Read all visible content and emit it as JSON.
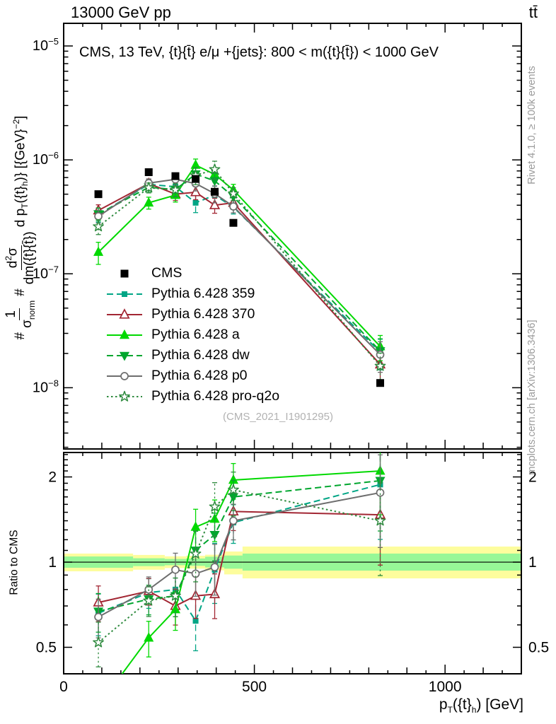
{
  "header": {
    "top_left": "13000 GeV pp",
    "top_right": "tt̄"
  },
  "sidebar": {
    "rivet_note": "Rivet 4.1.0, ≥ 100k events",
    "mcplots_note": "mcplots.cern.ch [arXiv:1306.3436]"
  },
  "chart_data": {
    "type": "line",
    "title": "CMS, 13 TeV, {t}{t̄} e/μ +{jets}: 800 < m({t}{t̄}) < 1000 GeV",
    "watermark": "(CMS_2021_I1901295)",
    "ratio_ylabel": "Ratio to CMS",
    "xlabel_parts": {
      "p": "p",
      "t_sub": "T",
      "mid": "({t}",
      "h_sub": "h",
      "tail": ") [GeV]"
    },
    "ylabel_parts": {
      "hash1": "#",
      "num1": "1",
      "sigma": "σ",
      "norm_sub": "norm",
      "hash2": "#",
      "d": "d",
      "two_sup": "2",
      "sigma2": "σ",
      "dm": "dm({t}{t̄})",
      "tail1": " d p",
      "T_sub": "T",
      "tail2": "({t}",
      "h_sub": "h",
      "tail3": ")} [{GeV}",
      "exp_sup": "−2",
      "tail4": "]"
    },
    "xlim": [
      0,
      1200
    ],
    "ylim_main": [
      2.9e-09,
      1.58e-05
    ],
    "ylim_ratio": [
      0.403,
      2.44
    ],
    "grid": false,
    "legend_position": "middle-left",
    "x_ticks": [
      0,
      500,
      1000
    ],
    "y_ticks_main_exp": [
      -5,
      -6,
      -7,
      -8
    ],
    "y_ticks_ratio": [
      2,
      1,
      0.5
    ],
    "x": [
      91,
      223,
      293,
      346,
      396,
      445,
      830
    ],
    "bin_label": "p_T({t}_h) bin centers in GeV",
    "cms": {
      "name": "CMS",
      "color": "#000000",
      "values": [
        5e-07,
        7.8e-07,
        7.2e-07,
        6.8e-07,
        5.25e-07,
        2.8e-07,
        1.1e-08
      ]
    },
    "series": [
      {
        "name": "Pythia 6.428 359",
        "color": "#00a585",
        "style": "dashed",
        "marker": "square-filled",
        "values": [
          3.3e-07,
          6.1e-07,
          5.8e-07,
          4.2e-07,
          4.9e-07,
          3.85e-07,
          2.05e-08
        ],
        "ratio": [
          0.66,
          0.78,
          0.8,
          0.62,
          0.94,
          1.38,
          1.88
        ],
        "err_rel": [
          0.14,
          0.1,
          0.14,
          0.18,
          0.2,
          0.13,
          0.3
        ]
      },
      {
        "name": "Pythia 6.428 370",
        "color": "#a22633",
        "style": "solid",
        "marker": "triangle-open",
        "values": [
          3.6e-07,
          6.2e-07,
          5e-07,
          5.2e-07,
          4e-07,
          4.2e-07,
          1.6e-08
        ],
        "ratio": [
          0.72,
          0.79,
          0.7,
          0.76,
          0.77,
          1.51,
          1.47
        ],
        "err_rel": [
          0.12,
          0.09,
          0.12,
          0.14,
          0.15,
          0.12,
          0.28
        ]
      },
      {
        "name": "Pythia 6.428 a",
        "color": "#00d900",
        "style": "solid",
        "marker": "triangle-filled",
        "values": [
          1.55e-07,
          4.2e-07,
          4.9e-07,
          9e-07,
          7.45e-07,
          5.45e-07,
          2.3e-08
        ],
        "ratio": [
          0.31,
          0.54,
          0.68,
          1.33,
          1.42,
          1.95,
          2.1
        ],
        "err_rel": [
          0.22,
          0.12,
          0.13,
          0.13,
          0.14,
          0.12,
          0.25
        ]
      },
      {
        "name": "Pythia 6.428 dw",
        "color": "#00a62e",
        "style": "dashed",
        "marker": "triangle-down-filled",
        "values": [
          3.35e-07,
          5.75e-07,
          5.5e-07,
          7.5e-07,
          6.55e-07,
          4.75e-07,
          2.1e-08
        ],
        "ratio": [
          0.67,
          0.74,
          0.76,
          1.1,
          1.25,
          1.7,
          1.94
        ],
        "err_rel": [
          0.13,
          0.1,
          0.13,
          0.14,
          0.16,
          0.12,
          0.28
        ]
      },
      {
        "name": "Pythia 6.428 p0",
        "color": "#6e6e6e",
        "style": "solid",
        "marker": "circle-open",
        "values": [
          3.2e-07,
          6.25e-07,
          6.75e-07,
          6.2e-07,
          5.05e-07,
          3.9e-07,
          1.95e-08
        ],
        "ratio": [
          0.64,
          0.8,
          0.94,
          0.91,
          0.96,
          1.4,
          1.76
        ],
        "err_rel": [
          0.13,
          0.09,
          0.12,
          0.14,
          0.17,
          0.12,
          0.3
        ]
      },
      {
        "name": "Pythia 6.428 pro-q2o",
        "color": "#2f8b3f",
        "style": "dotted",
        "marker": "star-open",
        "values": [
          2.6e-07,
          5.7e-07,
          5.45e-07,
          7.3e-07,
          8.25e-07,
          5.05e-07,
          1.55e-08
        ],
        "ratio": [
          0.52,
          0.73,
          0.76,
          1.07,
          1.57,
          1.8,
          1.4
        ],
        "err_rel": [
          0.15,
          0.1,
          0.13,
          0.17,
          0.18,
          0.13,
          0.3
        ]
      }
    ],
    "bands": [
      {
        "x0": 0,
        "x1": 182,
        "yellow": [
          0.928,
          1.072
        ],
        "green": [
          0.955,
          1.047
        ]
      },
      {
        "x0": 182,
        "x1": 265,
        "yellow": [
          0.94,
          1.06
        ],
        "green": [
          0.968,
          1.032
        ]
      },
      {
        "x0": 265,
        "x1": 321,
        "yellow": [
          0.953,
          1.048
        ],
        "green": [
          0.975,
          1.026
        ]
      },
      {
        "x0": 321,
        "x1": 371,
        "yellow": [
          0.948,
          1.053
        ],
        "green": [
          0.97,
          1.03
        ]
      },
      {
        "x0": 371,
        "x1": 421,
        "yellow": [
          0.935,
          1.062
        ],
        "green": [
          0.958,
          1.045
        ]
      },
      {
        "x0": 421,
        "x1": 469,
        "yellow": [
          0.905,
          1.09
        ],
        "green": [
          0.948,
          1.055
        ]
      },
      {
        "x0": 469,
        "x1": 1200,
        "yellow": [
          0.876,
          1.135
        ],
        "green": [
          0.933,
          1.072
        ]
      }
    ],
    "band_colors": {
      "yellow": "#fdfd9d",
      "green": "#97f797"
    }
  }
}
